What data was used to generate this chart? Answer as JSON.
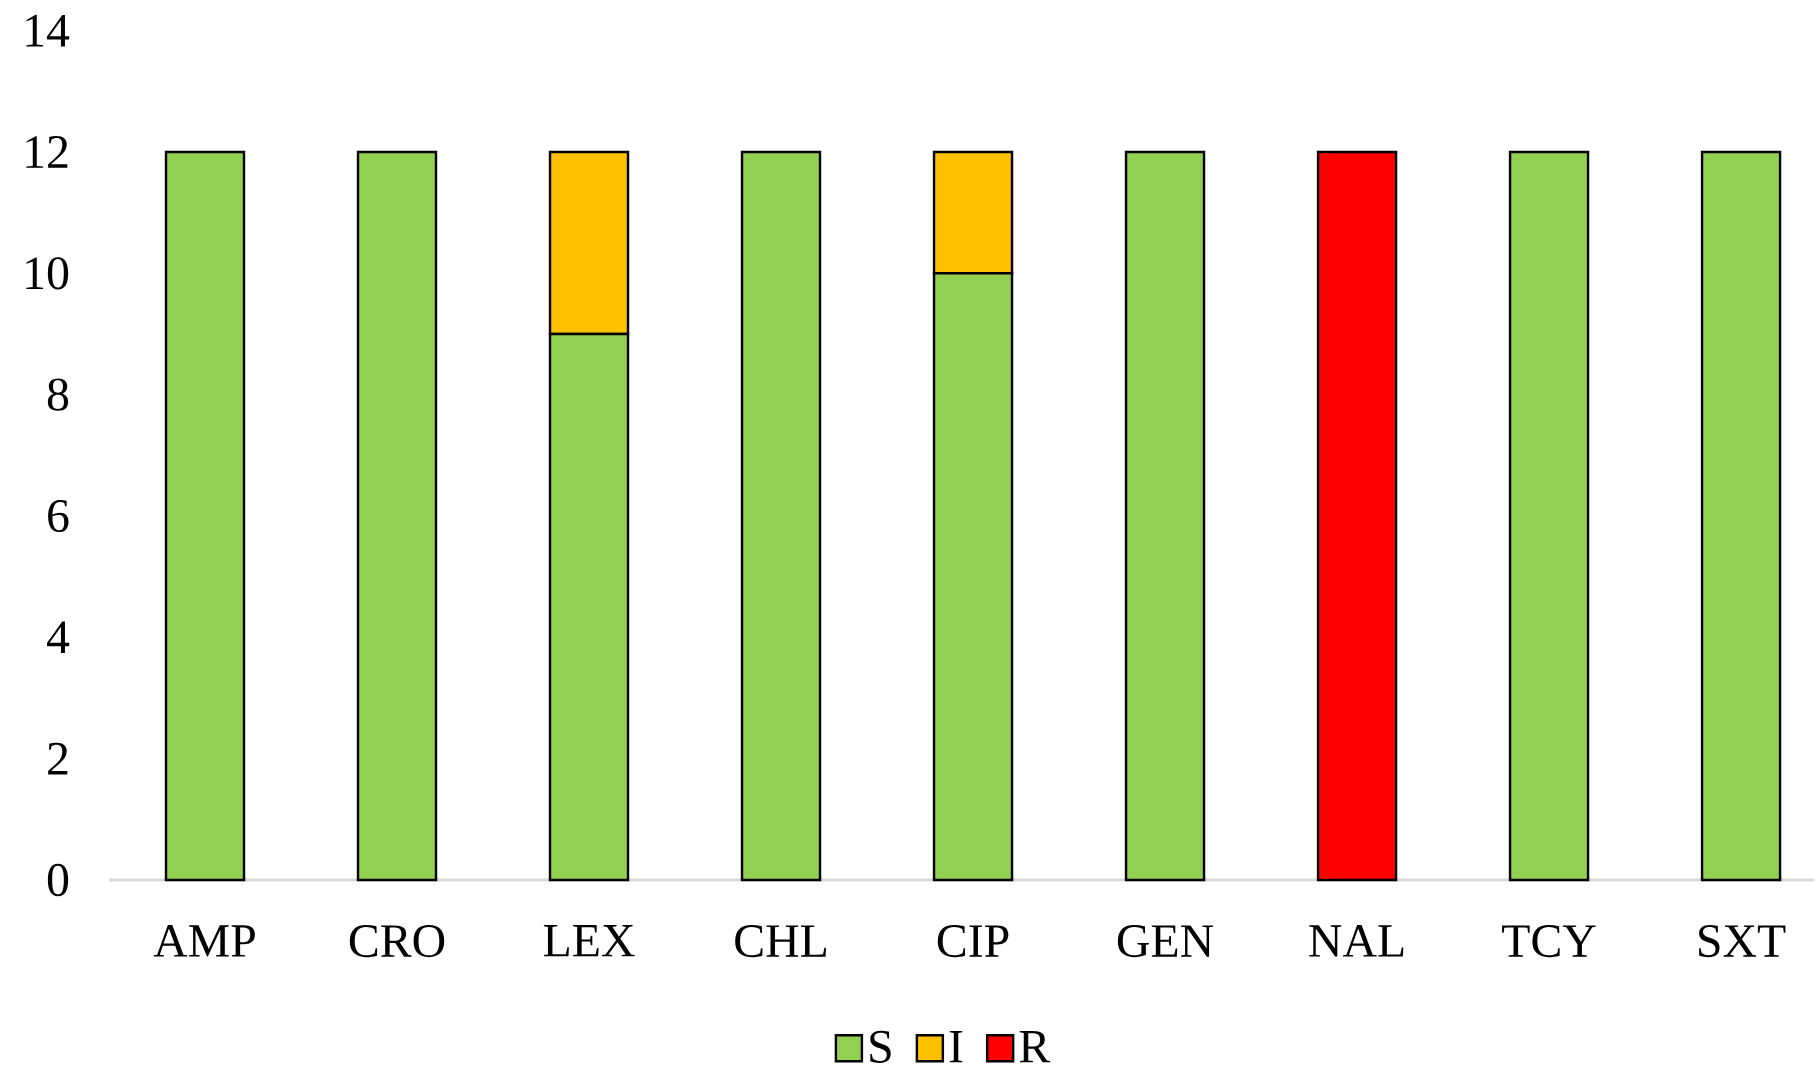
{
  "chart_data": {
    "type": "bar",
    "stacked": true,
    "categories": [
      "AMP",
      "CRO",
      "LEX",
      "CHL",
      "CIP",
      "GEN",
      "NAL",
      "TCY",
      "SXT"
    ],
    "series": [
      {
        "name": "S",
        "color": "#92d050",
        "values": [
          12,
          12,
          9,
          12,
          10,
          12,
          0,
          12,
          12
        ]
      },
      {
        "name": "I",
        "color": "#ffc000",
        "values": [
          0,
          0,
          3,
          0,
          2,
          0,
          0,
          0,
          0
        ]
      },
      {
        "name": "R",
        "color": "#ff0000",
        "values": [
          0,
          0,
          0,
          0,
          0,
          0,
          12,
          0,
          0
        ]
      }
    ],
    "ylim": [
      0,
      14
    ],
    "yticks": [
      0,
      2,
      4,
      6,
      8,
      10,
      12,
      14
    ],
    "legend": "bottom"
  }
}
